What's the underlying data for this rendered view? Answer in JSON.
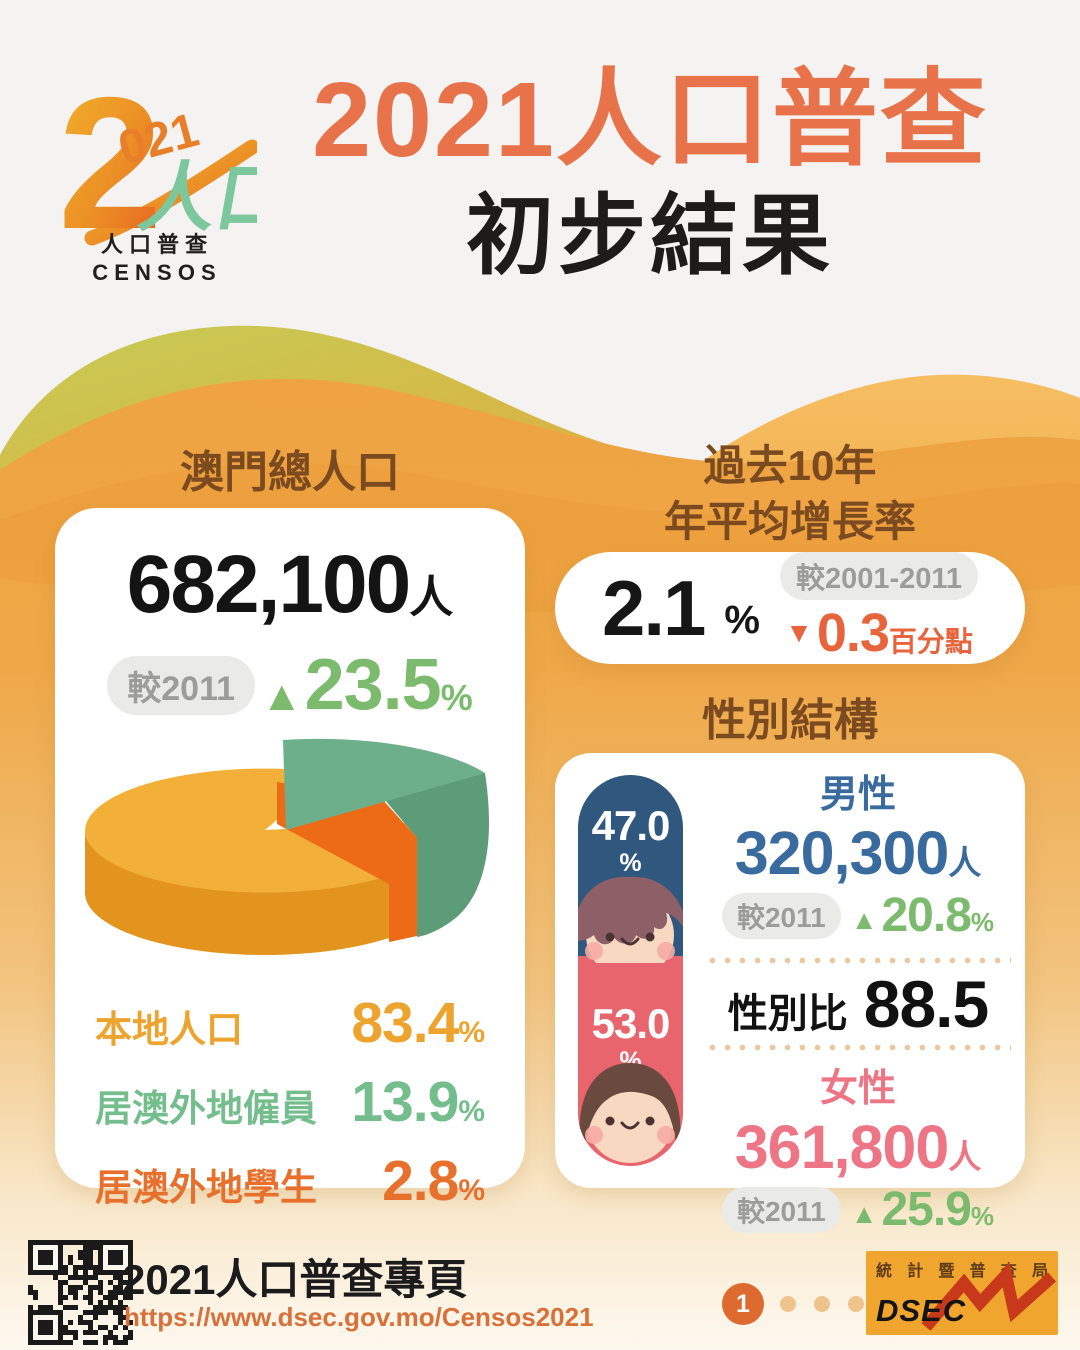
{
  "logo": {
    "big_digit": "2",
    "small_digits": "021",
    "green_glyph": "人口",
    "caption_cjk": "人 口 普 查",
    "caption_latin": "C E N S O S"
  },
  "header": {
    "title": "2021人口普查",
    "subtitle": "初步結果"
  },
  "left_panel": {
    "heading": "澳門總人口",
    "total_value": "682,100",
    "total_unit": "人",
    "compare_label": "較2011",
    "up_symbol": "▲",
    "change_value": "23.5",
    "change_unit": "%",
    "legend": [
      {
        "label": "本地人口",
        "value": "83.4",
        "unit": "%",
        "color": "#ECA42F"
      },
      {
        "label": "居澳外地僱員",
        "value": "13.9",
        "unit": "%",
        "color": "#74BD8D"
      },
      {
        "label": "居澳外地學生",
        "value": "2.8",
        "unit": "%",
        "color": "#E8702D"
      }
    ]
  },
  "growth_panel": {
    "heading_line1": "過去10年",
    "heading_line2": "年平均增長率",
    "rate_value": "2.1",
    "rate_unit": "%",
    "compare_label": "較2001-2011",
    "down_symbol": "▼",
    "change_value": "0.3",
    "change_unit": "百分點"
  },
  "gender_panel": {
    "heading": "性別結構",
    "male": {
      "share": "47.0",
      "share_unit": "%",
      "label": "男性",
      "count": "320,300",
      "count_unit": "人",
      "compare_label": "較2011",
      "up_symbol": "▲",
      "change": "20.8",
      "change_unit": "%",
      "color": "#3A6B9E"
    },
    "ratio": {
      "label": "性別比",
      "value": "88.5"
    },
    "female": {
      "share": "53.0",
      "share_unit": "%",
      "label": "女性",
      "count": "361,800",
      "count_unit": "人",
      "compare_label": "較2011",
      "up_symbol": "▲",
      "change": "25.9",
      "change_unit": "%",
      "color": "#ED7585"
    }
  },
  "footer": {
    "qr_title": "2021人口普查專頁",
    "url": "https://www.dsec.gov.mo/Censos2021",
    "page_number": "1",
    "dsec_cjk": [
      "統",
      "計",
      "暨",
      "普",
      "查",
      "局"
    ],
    "dsec_latin": "DSEC"
  },
  "chart_data": [
    {
      "type": "pie",
      "title": "澳門總人口",
      "labels": [
        "本地人口",
        "居澳外地僱員",
        "居澳外地學生"
      ],
      "values": [
        83.4,
        13.9,
        2.8
      ],
      "colors": [
        "#F3B039",
        "#6CAF8A",
        "#ED6B16"
      ],
      "style": "3d-exploded",
      "total_label": "682,100人",
      "change_vs_2011_pct": 23.5
    },
    {
      "type": "bar",
      "title": "性別結構",
      "categories": [
        "男性",
        "女性"
      ],
      "values": [
        47.0,
        53.0
      ],
      "counts": [
        320300,
        361800
      ],
      "change_vs_2011_pct": [
        20.8,
        25.9
      ],
      "sex_ratio": 88.5,
      "colors": [
        "#30587E",
        "#E9656E"
      ]
    },
    {
      "type": "table",
      "title": "過去10年 年平均增長率",
      "value_pct": 2.1,
      "change_vs_2001_2011_pp": -0.3
    }
  ]
}
